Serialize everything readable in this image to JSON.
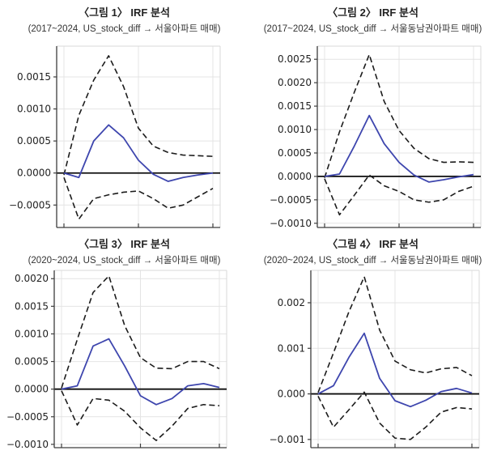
{
  "colors": {
    "irf_line": "#3e46ae",
    "band_line": "#1c1c1c",
    "zero_line": "#0d0d0d",
    "grid": "#e4e4e4",
    "axis": "#3d3d3d",
    "frame_light": "#d8d8d8",
    "tick_text": "#1f1f1f",
    "background": "#ffffff"
  },
  "chart_data": [
    {
      "type": "line",
      "title": "〈그림 1〉 IRF 분석",
      "subtitle": "(2017~2024, US_stock_diff → 서울아파트 매매)",
      "x": [
        0,
        1,
        2,
        3,
        4,
        5,
        6,
        7,
        8,
        9,
        10
      ],
      "x_ticks": [
        0,
        5,
        10
      ],
      "x_tick_labels": [
        "",
        "",
        ""
      ],
      "ylim": [
        -0.00085,
        0.00198
      ],
      "y_ticks": [
        0.0015,
        0.001,
        0.0005,
        0.0,
        -0.0005
      ],
      "y_tick_labels": [
        "0.0015",
        "0.0010",
        "0.0005",
        "0.0000",
        "−0.0005"
      ],
      "grid": true,
      "legend": "none",
      "series": [
        {
          "name": "IRF response",
          "style": "solid",
          "values": [
            0.0,
            -7e-05,
            0.0005,
            0.00075,
            0.00055,
            0.0002,
            -2e-05,
            -0.00013,
            -7e-05,
            -3e-05,
            0.0
          ]
        },
        {
          "name": "confidence band upper",
          "style": "dashed",
          "values": [
            -3e-05,
            0.0009,
            0.00145,
            0.00183,
            0.00135,
            0.0007,
            0.00042,
            0.00032,
            0.00028,
            0.00027,
            0.00026
          ]
        },
        {
          "name": "confidence band lower",
          "style": "dashed",
          "values": [
            -7e-05,
            -0.00072,
            -0.0004,
            -0.00034,
            -0.0003,
            -0.00028,
            -0.0004,
            -0.00055,
            -0.0005,
            -0.00037,
            -0.00024
          ]
        }
      ]
    },
    {
      "type": "line",
      "title": "〈그림 2〉 IRF 분석",
      "subtitle": "(2017~2024, US_stock_diff → 서울동남권아파트 매매)",
      "x": [
        0,
        1,
        2,
        3,
        4,
        5,
        6,
        7,
        8,
        9,
        10
      ],
      "x_ticks": [
        0,
        5,
        10
      ],
      "x_tick_labels": [
        "",
        "",
        ""
      ],
      "ylim": [
        -0.00109,
        0.00278
      ],
      "y_ticks": [
        0.0025,
        0.002,
        0.0015,
        0.001,
        0.0005,
        0.0,
        -0.0005,
        -0.001
      ],
      "y_tick_labels": [
        "0.0025",
        "0.0020",
        "0.0015",
        "0.0010",
        "0.0005",
        "0.0000",
        "−0.0005",
        "−0.0010"
      ],
      "grid": true,
      "legend": "none",
      "series": [
        {
          "name": "IRF response",
          "style": "solid",
          "values": [
            0.0,
            5e-05,
            0.00065,
            0.0013,
            0.0007,
            0.0003,
            3e-05,
            -0.00012,
            -7e-05,
            -1e-05,
            4e-05
          ]
        },
        {
          "name": "confidence band upper",
          "style": "dashed",
          "values": [
            -3e-05,
            0.00095,
            0.0018,
            0.0026,
            0.0016,
            0.00098,
            0.0006,
            0.00038,
            0.0003,
            0.00031,
            0.0003
          ]
        },
        {
          "name": "confidence band lower",
          "style": "dashed",
          "values": [
            -5e-05,
            -0.00082,
            -0.0004,
            3e-05,
            -0.0002,
            -0.00032,
            -0.0005,
            -0.00055,
            -0.0005,
            -0.00032,
            -0.00021
          ]
        }
      ]
    },
    {
      "type": "line",
      "title": "〈그림 3〉 IRF 분석",
      "subtitle": "(2020~2024, US_stock_diff → 서울아파트 매매)",
      "x": [
        0,
        1,
        2,
        3,
        4,
        5,
        6,
        7,
        8,
        9,
        10
      ],
      "x_ticks": [
        0,
        5,
        10
      ],
      "x_tick_labels": [
        "",
        "",
        ""
      ],
      "ylim": [
        -0.00106,
        0.00215
      ],
      "y_ticks": [
        0.002,
        0.0015,
        0.001,
        0.0005,
        0.0,
        -0.0005,
        -0.001
      ],
      "y_tick_labels": [
        "0.0020",
        "0.0015",
        "0.0010",
        "0.0005",
        "0.0000",
        "−0.0005",
        "−0.0010"
      ],
      "grid": true,
      "legend": "none",
      "series": [
        {
          "name": "IRF response",
          "style": "solid",
          "values": [
            0.0,
            6e-05,
            0.00078,
            0.00091,
            0.00042,
            -0.00012,
            -0.00028,
            -0.00017,
            6e-05,
            0.0001,
            3e-05
          ]
        },
        {
          "name": "confidence band upper",
          "style": "dashed",
          "values": [
            2e-05,
            0.0009,
            0.00175,
            0.00205,
            0.00115,
            0.00057,
            0.00038,
            0.00037,
            0.0005,
            0.0005,
            0.00037
          ]
        },
        {
          "name": "confidence band lower",
          "style": "dashed",
          "values": [
            -3e-05,
            -0.00065,
            -0.00017,
            -0.0002,
            -0.0004,
            -0.0007,
            -0.00093,
            -0.00067,
            -0.00035,
            -0.00028,
            -0.0003
          ]
        }
      ]
    },
    {
      "type": "line",
      "title": "〈그림 4〉 IRF 분석",
      "subtitle": "(2020~2024, US_stock_diff → 서울동남권아파트 매매)",
      "x": [
        0,
        1,
        2,
        3,
        4,
        5,
        6,
        7,
        8,
        9,
        10
      ],
      "x_ticks": [
        0,
        5,
        10
      ],
      "x_tick_labels": [
        "",
        "",
        ""
      ],
      "ylim": [
        -0.00118,
        0.00271
      ],
      "y_ticks": [
        0.002,
        0.001,
        0.0,
        -0.001
      ],
      "y_tick_labels": [
        "0.002",
        "0.001",
        "0.000",
        "−0.001"
      ],
      "grid": true,
      "legend": "none",
      "series": [
        {
          "name": "IRF response",
          "style": "solid",
          "values": [
            0.0,
            0.00018,
            0.0008,
            0.00133,
            0.00034,
            -0.00015,
            -0.00028,
            -0.00014,
            5e-05,
            0.00012,
            2e-05
          ]
        },
        {
          "name": "confidence band upper",
          "style": "dashed",
          "values": [
            3e-05,
            0.0009,
            0.0018,
            0.00257,
            0.0014,
            0.00072,
            0.00053,
            0.00046,
            0.00055,
            0.00058,
            0.0004
          ]
        },
        {
          "name": "confidence band lower",
          "style": "dashed",
          "values": [
            -5e-05,
            -0.00073,
            -0.00035,
            4e-05,
            -0.00064,
            -0.00097,
            -0.001,
            -0.00073,
            -0.0004,
            -0.0003,
            -0.00033
          ]
        }
      ]
    }
  ]
}
